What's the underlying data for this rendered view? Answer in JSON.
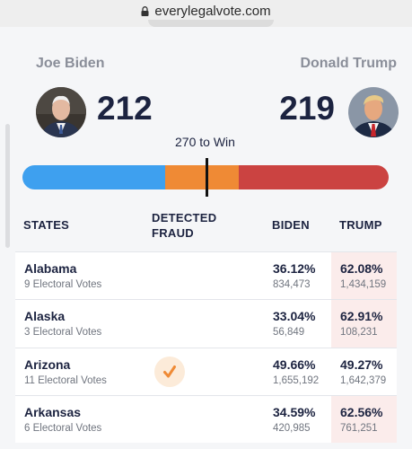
{
  "browser": {
    "url": "everylegalvote.com"
  },
  "candidates": {
    "left": {
      "name": "Joe Biden",
      "votes": "212"
    },
    "right": {
      "name": "Donald Trump",
      "votes": "219"
    }
  },
  "win_label": "270 to Win",
  "progress": {
    "biden_fraction": 0.39,
    "fraud_fraction": 0.2,
    "trump_fraction": 0.41
  },
  "colors": {
    "biden": "#3ea0ef",
    "fraud": "#ef8a35",
    "trump": "#cb4341",
    "text": "#1c2340"
  },
  "table": {
    "headers": {
      "states": "STATES",
      "fraud": "DETECTED\nFRAUD",
      "biden": "BIDEN",
      "trump": "TRUMP"
    },
    "rows": [
      {
        "state": "Alabama",
        "ev": "9 Electoral Votes",
        "biden_pct": "36.12%",
        "biden_votes": "834,473",
        "trump_pct": "62.08%",
        "trump_votes": "1,434,159",
        "fraud": false
      },
      {
        "state": "Alaska",
        "ev": "3 Electoral Votes",
        "biden_pct": "33.04%",
        "biden_votes": "56,849",
        "trump_pct": "62.91%",
        "trump_votes": "108,231",
        "fraud": false
      },
      {
        "state": "Arizona",
        "ev": "11 Electoral Votes",
        "biden_pct": "49.66%",
        "biden_votes": "1,655,192",
        "trump_pct": "49.27%",
        "trump_votes": "1,642,379",
        "fraud": true
      },
      {
        "state": "Arkansas",
        "ev": "6 Electoral Votes",
        "biden_pct": "34.59%",
        "biden_votes": "420,985",
        "trump_pct": "62.56%",
        "trump_votes": "761,251",
        "fraud": false
      }
    ]
  }
}
